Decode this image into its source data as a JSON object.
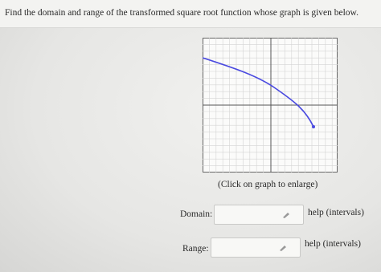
{
  "question": "Find the domain and range of the transformed square root function whose graph is given below.",
  "graph_caption": "(Click on graph to enlarge)",
  "domain": {
    "label": "Domain:",
    "help": "help (intervals)"
  },
  "range": {
    "label": "Range:",
    "help": "help (intervals)"
  }
}
